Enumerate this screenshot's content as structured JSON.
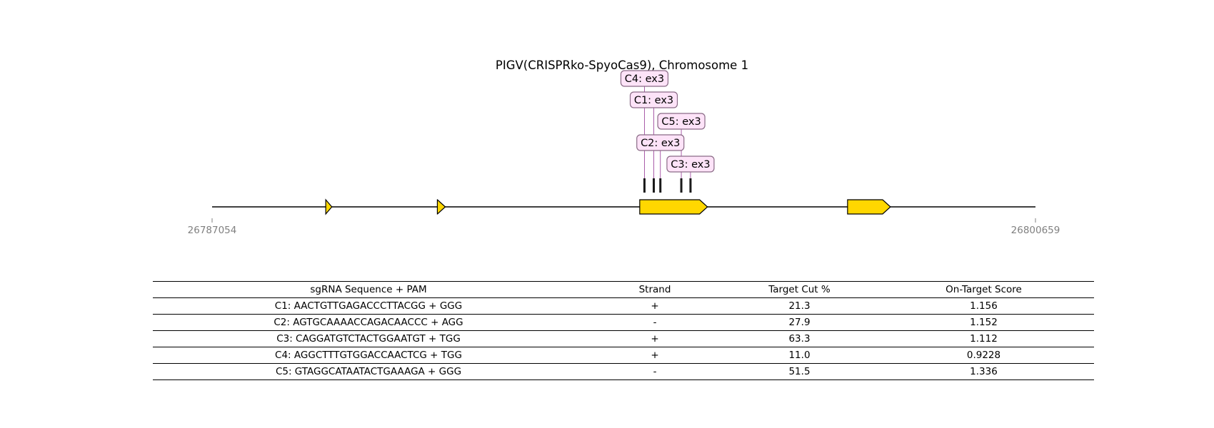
{
  "diagram": {
    "title": "PIGV(CRISPRko-SpyoCas9), Chromosome 1",
    "region_start": 26787054,
    "region_end": 26800659,
    "region_start_label": "26787054",
    "region_end_label": "26800659",
    "strand": "+",
    "colors": {
      "exon_fill": "#FFD700",
      "guide_label_bg": "#FDE3F8",
      "guide_label_border": "#8A6A86",
      "connector": "#A04AA0",
      "cut_mark": "#1A1A1A",
      "coord_text": "#808080"
    },
    "exons": [
      {
        "start": 26788932,
        "end": 26789033
      },
      {
        "start": 26790776,
        "end": 26790907
      },
      {
        "start": 26794120,
        "end": 26795239
      },
      {
        "start": 26797554,
        "end": 26798263
      }
    ],
    "guides": [
      {
        "id": "C1",
        "label": "C1: ex3",
        "position": 26794352
      },
      {
        "id": "C2",
        "label": "C2: ex3",
        "position": 26794461
      },
      {
        "id": "C3",
        "label": "C3: ex3",
        "position": 26794959
      },
      {
        "id": "C4",
        "label": "C4: ex3",
        "position": 26794198
      },
      {
        "id": "C5",
        "label": "C5: ex3",
        "position": 26794807
      }
    ]
  },
  "table": {
    "headers": [
      "sgRNA Sequence + PAM",
      "Strand",
      "Target Cut %",
      "On-Target Score"
    ],
    "rows": [
      [
        "C1: AACTGTTGAGACCCTTACGG + GGG",
        "+",
        "21.3",
        "1.156"
      ],
      [
        "C2: AGTGCAAAACCAGACAACCC + AGG",
        "-",
        "27.9",
        "1.152"
      ],
      [
        "C3: CAGGATGTCTACTGGAATGT + TGG",
        "+",
        "63.3",
        "1.112"
      ],
      [
        "C4: AGGCTTTGTGGACCAACTCG + TGG",
        "+",
        "11.0",
        "0.9228"
      ],
      [
        "C5: GTAGGCATAATACTGAAAGA + GGG",
        "-",
        "51.5",
        "1.336"
      ]
    ]
  }
}
